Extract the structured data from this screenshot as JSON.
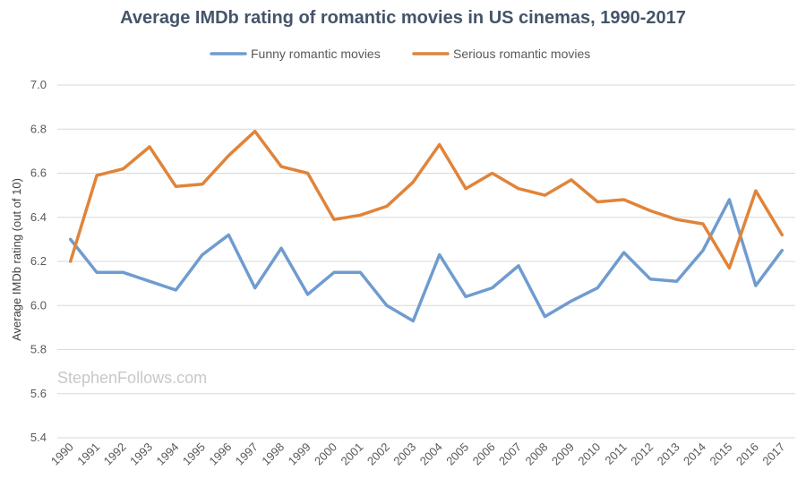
{
  "chart_data": {
    "type": "line",
    "title": "Average IMDb rating of romantic movies in US cinemas, 1990-2017",
    "ylabel": "Average IMDb rating  (out of 10)",
    "xlabel": "",
    "ylim": [
      5.4,
      7.0
    ],
    "yticks": [
      "5.4",
      "5.6",
      "5.8",
      "6.0",
      "6.2",
      "6.4",
      "6.6",
      "6.8",
      "7.0"
    ],
    "categories": [
      "1990",
      "1991",
      "1992",
      "1993",
      "1994",
      "1995",
      "1996",
      "1997",
      "1998",
      "1999",
      "2000",
      "2001",
      "2002",
      "2003",
      "2004",
      "2005",
      "2006",
      "2007",
      "2008",
      "2009",
      "2010",
      "2011",
      "2012",
      "2013",
      "2014",
      "2015",
      "2016",
      "2017"
    ],
    "series": [
      {
        "name": "Funny romantic movies",
        "color": "#6f9ccf",
        "values": [
          6.3,
          6.15,
          6.15,
          6.11,
          6.07,
          6.23,
          6.32,
          6.08,
          6.26,
          6.05,
          6.15,
          6.15,
          6.0,
          5.93,
          6.23,
          6.04,
          6.08,
          6.18,
          5.95,
          6.02,
          6.08,
          6.24,
          6.12,
          6.11,
          6.25,
          6.48,
          6.09,
          6.25
        ]
      },
      {
        "name": "Serious romantic movies",
        "color": "#e0843a",
        "values": [
          6.2,
          6.59,
          6.62,
          6.72,
          6.54,
          6.55,
          6.68,
          6.79,
          6.63,
          6.6,
          6.39,
          6.41,
          6.45,
          6.56,
          6.73,
          6.53,
          6.6,
          6.53,
          6.5,
          6.57,
          6.47,
          6.48,
          6.43,
          6.39,
          6.37,
          6.17,
          6.52,
          6.32
        ]
      }
    ],
    "legend_position": "top-center",
    "grid": true,
    "watermark": "StephenFollows.com"
  }
}
